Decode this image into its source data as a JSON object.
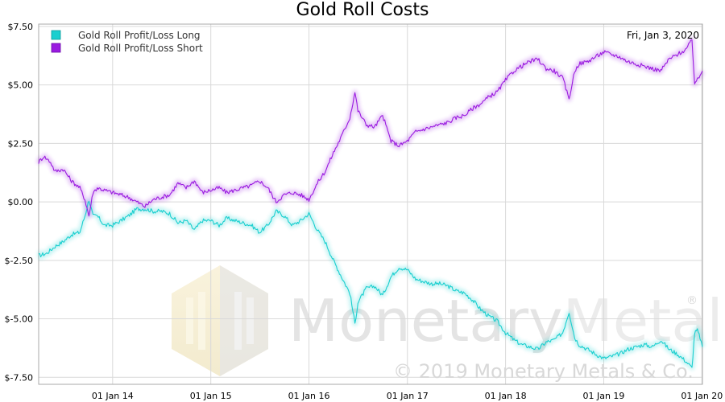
{
  "chart_data": {
    "type": "line",
    "title": "Gold Roll Costs",
    "date_label": "Fri, Jan 3, 2020",
    "x_range": [
      "2013-04-01",
      "2020-01-03"
    ],
    "ylim": [
      -7.8,
      7.6
    ],
    "y_ticks": [
      {
        "value": 7.5,
        "label": "$7.50"
      },
      {
        "value": 5.0,
        "label": "$5.00"
      },
      {
        "value": 2.5,
        "label": "$2.50"
      },
      {
        "value": 0.0,
        "label": "$0.00"
      },
      {
        "value": -2.5,
        "label": "$-2.50"
      },
      {
        "value": -5.0,
        "label": "$-5.00"
      },
      {
        "value": -7.5,
        "label": "$-7.50"
      }
    ],
    "x_ticks": [
      {
        "value": "2014-01-01",
        "label": "01 Jan 14"
      },
      {
        "value": "2015-01-01",
        "label": "01 Jan 15"
      },
      {
        "value": "2016-01-01",
        "label": "01 Jan 16"
      },
      {
        "value": "2017-01-01",
        "label": "01 Jan 17"
      },
      {
        "value": "2018-01-01",
        "label": "01 Jan 18"
      },
      {
        "value": "2019-01-01",
        "label": "01 Jan 19"
      },
      {
        "value": "2020-01-01",
        "label": "01 Jan 20"
      }
    ],
    "grid": true,
    "legend_position": "top-left",
    "series": [
      {
        "name": "Gold Roll Profit/Loss Long",
        "color": "#19cfcf",
        "points": [
          [
            "2013-04-01",
            -2.3
          ],
          [
            "2013-05-01",
            -2.2
          ],
          [
            "2013-06-01",
            -1.9
          ],
          [
            "2013-07-01",
            -1.7
          ],
          [
            "2013-08-01",
            -1.4
          ],
          [
            "2013-09-01",
            -1.3
          ],
          [
            "2013-09-20",
            -0.6
          ],
          [
            "2013-10-05",
            0.1
          ],
          [
            "2013-10-20",
            -0.6
          ],
          [
            "2013-11-05",
            -0.6
          ],
          [
            "2013-12-01",
            -1.0
          ],
          [
            "2014-01-01",
            -1.0
          ],
          [
            "2014-02-01",
            -0.8
          ],
          [
            "2014-03-01",
            -0.6
          ],
          [
            "2014-04-01",
            -0.3
          ],
          [
            "2014-05-01",
            -0.3
          ],
          [
            "2014-06-01",
            -0.4
          ],
          [
            "2014-07-01",
            -0.4
          ],
          [
            "2014-08-01",
            -0.5
          ],
          [
            "2014-09-01",
            -0.9
          ],
          [
            "2014-10-01",
            -0.8
          ],
          [
            "2014-11-01",
            -1.2
          ],
          [
            "2014-12-01",
            -0.8
          ],
          [
            "2015-01-01",
            -0.8
          ],
          [
            "2015-02-01",
            -1.0
          ],
          [
            "2015-03-01",
            -0.7
          ],
          [
            "2015-04-01",
            -0.8
          ],
          [
            "2015-05-01",
            -0.9
          ],
          [
            "2015-06-01",
            -1.0
          ],
          [
            "2015-07-01",
            -1.3
          ],
          [
            "2015-08-01",
            -1.0
          ],
          [
            "2015-09-01",
            -0.4
          ],
          [
            "2015-10-01",
            -0.6
          ],
          [
            "2015-11-01",
            -1.0
          ],
          [
            "2015-12-01",
            -0.8
          ],
          [
            "2016-01-01",
            -0.5
          ],
          [
            "2016-02-01",
            -1.2
          ],
          [
            "2016-03-01",
            -1.7
          ],
          [
            "2016-04-01",
            -2.5
          ],
          [
            "2016-05-01",
            -3.2
          ],
          [
            "2016-06-01",
            -3.9
          ],
          [
            "2016-06-20",
            -5.2
          ],
          [
            "2016-07-01",
            -4.3
          ],
          [
            "2016-08-01",
            -3.7
          ],
          [
            "2016-09-01",
            -3.6
          ],
          [
            "2016-10-01",
            -4.0
          ],
          [
            "2016-11-01",
            -3.2
          ],
          [
            "2016-12-01",
            -2.8
          ],
          [
            "2017-01-01",
            -2.9
          ],
          [
            "2017-02-01",
            -3.3
          ],
          [
            "2017-03-01",
            -3.4
          ],
          [
            "2017-04-01",
            -3.5
          ],
          [
            "2017-05-01",
            -3.5
          ],
          [
            "2017-06-01",
            -3.6
          ],
          [
            "2017-07-01",
            -3.8
          ],
          [
            "2017-08-01",
            -3.9
          ],
          [
            "2017-09-01",
            -4.2
          ],
          [
            "2017-10-01",
            -4.6
          ],
          [
            "2017-11-01",
            -4.9
          ],
          [
            "2017-12-01",
            -5.1
          ],
          [
            "2018-01-01",
            -5.6
          ],
          [
            "2018-02-01",
            -5.9
          ],
          [
            "2018-03-01",
            -6.1
          ],
          [
            "2018-04-01",
            -6.2
          ],
          [
            "2018-05-01",
            -6.3
          ],
          [
            "2018-06-01",
            -6.0
          ],
          [
            "2018-07-01",
            -5.9
          ],
          [
            "2018-08-01",
            -5.6
          ],
          [
            "2018-08-25",
            -4.7
          ],
          [
            "2018-09-15",
            -5.8
          ],
          [
            "2018-10-01",
            -6.1
          ],
          [
            "2018-11-01",
            -6.3
          ],
          [
            "2018-12-01",
            -6.5
          ],
          [
            "2019-01-01",
            -6.7
          ],
          [
            "2019-02-01",
            -6.6
          ],
          [
            "2019-03-01",
            -6.5
          ],
          [
            "2019-04-01",
            -6.3
          ],
          [
            "2019-05-01",
            -6.2
          ],
          [
            "2019-06-01",
            -6.1
          ],
          [
            "2019-07-01",
            -6.2
          ],
          [
            "2019-08-01",
            -5.9
          ],
          [
            "2019-09-01",
            -6.3
          ],
          [
            "2019-10-01",
            -6.5
          ],
          [
            "2019-11-01",
            -6.8
          ],
          [
            "2019-11-25",
            -7.1
          ],
          [
            "2019-12-05",
            -5.6
          ],
          [
            "2019-12-15",
            -5.5
          ],
          [
            "2019-12-25",
            -5.8
          ],
          [
            "2020-01-03",
            -6.2
          ]
        ]
      },
      {
        "name": "Gold Roll Profit/Loss Short",
        "color": "#9a1ae0",
        "points": [
          [
            "2013-04-01",
            1.7
          ],
          [
            "2013-04-20",
            1.95
          ],
          [
            "2013-05-15",
            1.7
          ],
          [
            "2013-06-01",
            1.3
          ],
          [
            "2013-07-01",
            1.4
          ],
          [
            "2013-08-01",
            0.9
          ],
          [
            "2013-09-01",
            0.6
          ],
          [
            "2013-09-20",
            0.1
          ],
          [
            "2013-10-05",
            -0.6
          ],
          [
            "2013-10-20",
            0.4
          ],
          [
            "2013-11-05",
            0.6
          ],
          [
            "2013-12-01",
            0.5
          ],
          [
            "2014-01-01",
            0.4
          ],
          [
            "2014-02-01",
            0.3
          ],
          [
            "2014-03-01",
            0.2
          ],
          [
            "2014-04-01",
            0.0
          ],
          [
            "2014-05-01",
            -0.2
          ],
          [
            "2014-06-01",
            0.1
          ],
          [
            "2014-07-01",
            0.2
          ],
          [
            "2014-08-01",
            0.3
          ],
          [
            "2014-09-01",
            0.8
          ],
          [
            "2014-10-01",
            0.6
          ],
          [
            "2014-11-01",
            0.9
          ],
          [
            "2014-12-01",
            0.4
          ],
          [
            "2015-01-01",
            0.5
          ],
          [
            "2015-02-01",
            0.6
          ],
          [
            "2015-03-01",
            0.4
          ],
          [
            "2015-04-01",
            0.5
          ],
          [
            "2015-05-01",
            0.6
          ],
          [
            "2015-06-01",
            0.7
          ],
          [
            "2015-07-01",
            0.9
          ],
          [
            "2015-08-01",
            0.6
          ],
          [
            "2015-09-01",
            0.0
          ],
          [
            "2015-10-01",
            0.3
          ],
          [
            "2015-11-01",
            0.4
          ],
          [
            "2015-12-01",
            0.3
          ],
          [
            "2016-01-01",
            0.1
          ],
          [
            "2016-02-01",
            0.8
          ],
          [
            "2016-03-01",
            1.3
          ],
          [
            "2016-04-01",
            2.1
          ],
          [
            "2016-05-01",
            2.8
          ],
          [
            "2016-06-01",
            3.6
          ],
          [
            "2016-06-20",
            4.7
          ],
          [
            "2016-07-01",
            3.9
          ],
          [
            "2016-08-01",
            3.3
          ],
          [
            "2016-09-01",
            3.2
          ],
          [
            "2016-10-01",
            3.7
          ],
          [
            "2016-11-01",
            2.6
          ],
          [
            "2016-12-01",
            2.4
          ],
          [
            "2017-01-01",
            2.6
          ],
          [
            "2017-02-01",
            3.0
          ],
          [
            "2017-03-01",
            3.1
          ],
          [
            "2017-04-01",
            3.2
          ],
          [
            "2017-05-01",
            3.3
          ],
          [
            "2017-06-01",
            3.4
          ],
          [
            "2017-07-01",
            3.6
          ],
          [
            "2017-08-01",
            3.7
          ],
          [
            "2017-09-01",
            4.0
          ],
          [
            "2017-10-01",
            4.2
          ],
          [
            "2017-11-01",
            4.5
          ],
          [
            "2017-12-01",
            4.7
          ],
          [
            "2018-01-01",
            5.2
          ],
          [
            "2018-02-01",
            5.6
          ],
          [
            "2018-03-01",
            5.8
          ],
          [
            "2018-04-01",
            6.0
          ],
          [
            "2018-05-01",
            6.1
          ],
          [
            "2018-06-01",
            5.7
          ],
          [
            "2018-07-01",
            5.6
          ],
          [
            "2018-08-01",
            5.3
          ],
          [
            "2018-08-25",
            4.4
          ],
          [
            "2018-09-15",
            5.6
          ],
          [
            "2018-10-01",
            5.9
          ],
          [
            "2018-11-01",
            6.0
          ],
          [
            "2018-12-01",
            6.2
          ],
          [
            "2019-01-01",
            6.4
          ],
          [
            "2019-02-01",
            6.3
          ],
          [
            "2019-03-01",
            6.2
          ],
          [
            "2019-04-01",
            6.0
          ],
          [
            "2019-05-01",
            5.9
          ],
          [
            "2019-06-01",
            5.8
          ],
          [
            "2019-07-01",
            5.7
          ],
          [
            "2019-08-01",
            5.6
          ],
          [
            "2019-09-01",
            6.1
          ],
          [
            "2019-10-01",
            6.3
          ],
          [
            "2019-11-01",
            6.5
          ],
          [
            "2019-11-25",
            6.9
          ],
          [
            "2019-12-05",
            5.1
          ],
          [
            "2019-12-15",
            5.2
          ],
          [
            "2019-12-25",
            5.4
          ],
          [
            "2020-01-03",
            5.6
          ]
        ]
      }
    ]
  },
  "watermark": {
    "brand": "MonetaryMetals",
    "brand_first": "Monetary",
    "brand_second": "Metals",
    "registered": "®",
    "copyright": "© 2019 Monetary Metals & Co.",
    "colors": {
      "gold": "#f3e7c0",
      "gray": "#e1e1e1"
    }
  }
}
